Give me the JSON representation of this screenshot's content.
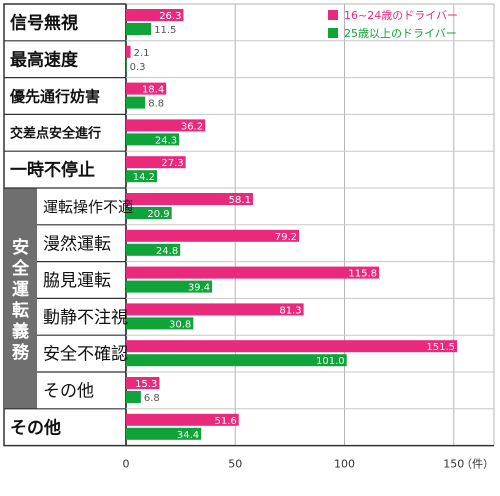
{
  "chart_data": {
    "type": "bar",
    "orientation": "horizontal",
    "group_label": "安全運転義務",
    "categories": [
      "信号無視",
      "最高速度",
      "優先通行妨害",
      "交差点安全進行",
      "一時不停止",
      "運転操作不適",
      "漫然運転",
      "脇見運転",
      "動静不注視",
      "安全不確認",
      "その他",
      "その他"
    ],
    "group_members": [
      5,
      6,
      7,
      8,
      9,
      10
    ],
    "series": [
      {
        "name": "16~24歳のドライバー",
        "color": "#e8297c",
        "values": [
          26.3,
          2.1,
          18.4,
          36.2,
          27.3,
          58.1,
          79.2,
          115.8,
          81.3,
          151.5,
          15.3,
          51.6
        ]
      },
      {
        "name": "25歳以上のドライバー",
        "color": "#0fa33a",
        "values": [
          11.5,
          0.3,
          8.8,
          24.3,
          14.2,
          20.9,
          24.8,
          39.4,
          30.8,
          101.0,
          6.8,
          34.4
        ]
      }
    ],
    "value_labels": {
      "0": [
        "26.3",
        "2.1",
        "18.4",
        "36.2",
        "27.3",
        "58.1",
        "79.2",
        "115.8",
        "81.3",
        "151.5",
        "15.3",
        "51.6"
      ],
      "1": [
        "11.5",
        "0.3",
        "8.8",
        "24.3",
        "14.2",
        "20.9",
        "24.8",
        "39.4",
        "30.8",
        "101.0",
        "6.8",
        "34.4"
      ]
    },
    "xticks": [
      "0",
      "50",
      "100",
      "150"
    ],
    "xlim": [
      0,
      160
    ],
    "x_unit": "（件）",
    "grid": true,
    "legend_position": "top-right"
  }
}
